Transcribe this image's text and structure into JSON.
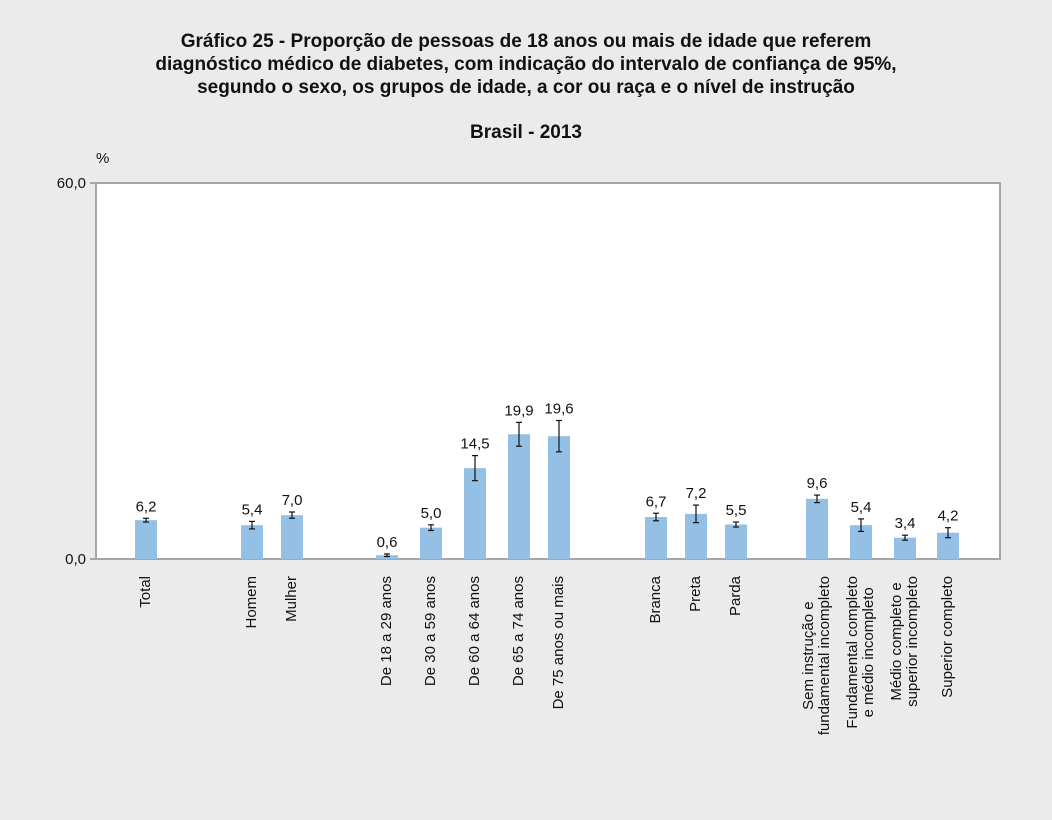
{
  "chart_data": {
    "type": "bar",
    "title": "Gráfico 25 - Proporção de pessoas de 18 anos ou mais de idade que referem\ndiagnóstico médico de diabetes, com indicação do intervalo de confiança de 95%,\nsegundo o sexo, os grupos de idade, a cor ou raça e o nível de instrução",
    "subtitle": "Brasil - 2013",
    "y_label": "%",
    "categories": [
      "Total",
      "Homem",
      "Mulher",
      "De 18 a 29 anos",
      "De 30 a 59 anos",
      "De 60 a 64 anos",
      "De 65 a 74 anos",
      "De 75 anos ou mais",
      "Branca",
      "Preta",
      "Parda",
      "Sem instrução e\nfundamental incompleto",
      "Fundamental completo\ne médio incompleto",
      "Médio completo e\nsuperior incompleto",
      "Superior completo"
    ],
    "values": [
      6.2,
      5.4,
      7.0,
      0.6,
      5.0,
      14.5,
      19.9,
      19.6,
      6.7,
      7.2,
      5.5,
      9.6,
      5.4,
      3.4,
      4.2
    ],
    "value_labels": [
      "6,2",
      "5,4",
      "7,0",
      "0,6",
      "5,0",
      "14,5",
      "19,9",
      "19,6",
      "6,7",
      "7,2",
      "5,5",
      "9,6",
      "5,4",
      "3,4",
      "4,2"
    ],
    "errors": [
      0.3,
      0.6,
      0.5,
      0.2,
      0.45,
      2.0,
      1.9,
      2.5,
      0.6,
      1.4,
      0.4,
      0.6,
      1.0,
      0.4,
      0.8
    ],
    "color": "#95c0e6",
    "ylim": [
      0,
      60
    ],
    "yticks": [
      {
        "value": 0,
        "label": "0,0"
      },
      {
        "value": 60,
        "label": "60,0"
      }
    ]
  }
}
